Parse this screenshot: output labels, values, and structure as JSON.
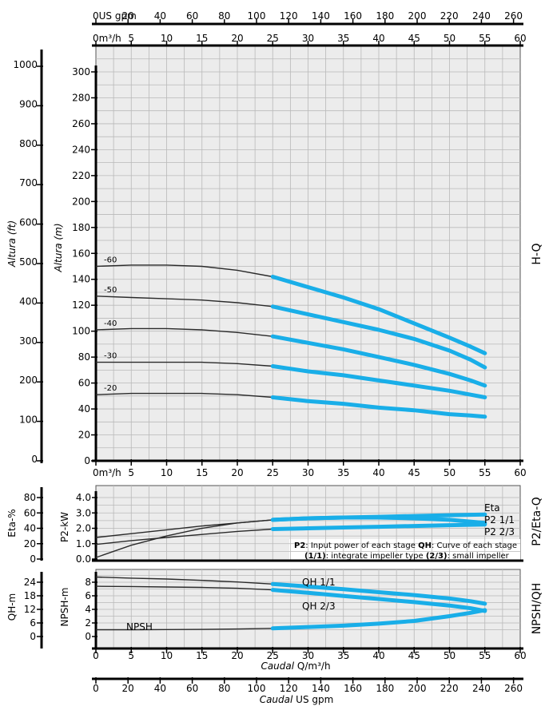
{
  "colors": {
    "blue": "#19aee8",
    "black": "#2a2a2a",
    "panel": "#ececec",
    "grid": "#b9b9b9"
  },
  "top_axis_usgpm": {
    "unit": "US gpm",
    "ticks": [
      "0",
      "20",
      "40",
      "60",
      "80",
      "100",
      "120",
      "140",
      "160",
      "180",
      "200",
      "220",
      "240",
      "260"
    ]
  },
  "top_axis_m3h": {
    "unit": "m³/h",
    "ticks": [
      "0",
      "5",
      "10",
      "15",
      "20",
      "25",
      "30",
      "35",
      "40",
      "45",
      "50",
      "55",
      "60"
    ]
  },
  "mid_axis_m3h": {
    "unit": "m³/h",
    "ticks": [
      "0",
      "5",
      "10",
      "15",
      "20",
      "25",
      "30",
      "35",
      "40",
      "45",
      "50",
      "55",
      "60"
    ]
  },
  "bottom_axis_m3h": {
    "ticks": [
      "0",
      "5",
      "10",
      "15",
      "20",
      "25",
      "30",
      "35",
      "40",
      "45",
      "50",
      "55",
      "60"
    ],
    "label_italic": "Caudal",
    "label_rest": " Q/m³/h"
  },
  "bottom_axis_usgpm": {
    "ticks": [
      "0",
      "20",
      "40",
      "60",
      "80",
      "100",
      "120",
      "140",
      "160",
      "180",
      "200",
      "220",
      "240",
      "260"
    ],
    "label_italic": "Caudal",
    "label_rest": " US gpm"
  },
  "hq": {
    "side_label": "H-Q",
    "ylabel_m": "Altura (m)",
    "ylabel_ft": "Altura (ft)",
    "ticks_m": [
      "0",
      "20",
      "40",
      "60",
      "80",
      "100",
      "120",
      "140",
      "160",
      "180",
      "200",
      "220",
      "240",
      "260",
      "280",
      "300"
    ],
    "ticks_ft": [
      "0",
      "100",
      "200",
      "300",
      "400",
      "500",
      "600",
      "700",
      "800",
      "900",
      "1000"
    ],
    "curve_labels": [
      "-60",
      "-50",
      "-40",
      "-30",
      "-20"
    ]
  },
  "p2eta": {
    "side_label": "P2/Eta-Q",
    "ylabel_left": "Eta-%",
    "ylabel_right": "P2-kW",
    "ticks_eta": [
      "0",
      "20",
      "40",
      "60",
      "80"
    ],
    "ticks_p2": [
      "0.0",
      "1.0",
      "2.0",
      "3.0",
      "4.0"
    ],
    "curve_labels": [
      "Eta",
      "P2 1/1",
      "P2 2/3"
    ],
    "note_line1_b1": "P2",
    "note_line1_t1": ": Input power of each stage ",
    "note_line1_b2": "QH",
    "note_line1_t2": ": Curve of each stage",
    "note_line2_b1": "(1/1)",
    "note_line2_t1": ": integrate impeller type ",
    "note_line2_b2": "(2/3)",
    "note_line2_t2": ": small impeller"
  },
  "npsh": {
    "side_label": "NPSH/QH",
    "ylabel_left": "QH-m",
    "ylabel_right": "NPSH-m",
    "ticks_qh": [
      "0",
      "6",
      "12",
      "18",
      "24"
    ],
    "ticks_npsh": [
      "0",
      "2",
      "4",
      "6",
      "8"
    ],
    "curve_labels": [
      "QH 1/1",
      "QH 2/3",
      "NPSH"
    ]
  },
  "chart_data": [
    {
      "type": "line",
      "xlabel": "Q (m³/h)",
      "ylabel": "Altura (m)",
      "xlim": [
        0,
        60
      ],
      "ylim": [
        0,
        320
      ],
      "series": [
        {
          "name": "-60",
          "x": [
            0,
            5,
            10,
            15,
            20,
            25,
            30,
            35,
            40,
            45,
            50,
            53,
            55
          ],
          "y": [
            150,
            151,
            151,
            150,
            147,
            142,
            134,
            126,
            117,
            106,
            95,
            88,
            83
          ]
        },
        {
          "name": "-50",
          "x": [
            0,
            5,
            10,
            15,
            20,
            25,
            30,
            35,
            40,
            45,
            50,
            53,
            55
          ],
          "y": [
            127,
            126,
            125,
            124,
            122,
            119,
            113,
            107,
            101,
            94,
            85,
            78,
            72
          ]
        },
        {
          "name": "-40",
          "x": [
            0,
            5,
            10,
            15,
            20,
            25,
            30,
            35,
            40,
            45,
            50,
            53,
            55
          ],
          "y": [
            101,
            102,
            102,
            101,
            99,
            96,
            91,
            86,
            80,
            74,
            67,
            62,
            58
          ]
        },
        {
          "name": "-30",
          "x": [
            0,
            5,
            10,
            15,
            20,
            25,
            30,
            35,
            40,
            45,
            50,
            53,
            55
          ],
          "y": [
            76,
            76,
            76,
            76,
            75,
            73,
            69,
            66,
            62,
            58,
            54,
            51,
            49
          ]
        },
        {
          "name": "-20",
          "x": [
            0,
            5,
            10,
            15,
            20,
            25,
            30,
            35,
            40,
            45,
            50,
            53,
            55
          ],
          "y": [
            51,
            52,
            52,
            52,
            51,
            49,
            46,
            44,
            41,
            39,
            36,
            35,
            34
          ]
        }
      ]
    },
    {
      "type": "line",
      "xlabel": "Q (m³/h)",
      "ylabel": "P2-kW",
      "xlim": [
        0,
        60
      ],
      "ylim": [
        0,
        4.5
      ],
      "series": [
        {
          "name": "Eta",
          "x": [
            0,
            5,
            10,
            15,
            20,
            25,
            30,
            35,
            40,
            45,
            50,
            55
          ],
          "y": [
            2,
            18,
            30,
            40,
            47,
            51,
            53,
            54,
            54,
            53,
            51,
            47
          ]
        },
        {
          "name": "P2 1/1",
          "x": [
            0,
            5,
            10,
            15,
            20,
            25,
            30,
            35,
            40,
            45,
            50,
            55
          ],
          "y": [
            1.4,
            1.65,
            1.9,
            2.15,
            2.35,
            2.55,
            2.65,
            2.7,
            2.75,
            2.8,
            2.85,
            2.9
          ]
        },
        {
          "name": "P2 2/3",
          "x": [
            0,
            5,
            10,
            15,
            20,
            25,
            30,
            35,
            40,
            45,
            50,
            55
          ],
          "y": [
            0.95,
            1.2,
            1.4,
            1.6,
            1.8,
            1.95,
            2.0,
            2.05,
            2.1,
            2.15,
            2.2,
            2.25
          ]
        }
      ]
    },
    {
      "type": "line",
      "xlabel": "Caudal Q/m³/h",
      "ylabel": "NPSH-m",
      "xlim": [
        0,
        60
      ],
      "ylim": [
        0,
        10
      ],
      "series": [
        {
          "name": "QH 1/1",
          "x": [
            0,
            5,
            10,
            15,
            20,
            25,
            30,
            35,
            40,
            45,
            50,
            53,
            55
          ],
          "y": [
            26.3,
            25.8,
            25.4,
            24.8,
            24.1,
            23.2,
            22.1,
            20.9,
            19.6,
            18.3,
            16.8,
            15.6,
            14.5
          ]
        },
        {
          "name": "QH 2/3",
          "x": [
            0,
            5,
            10,
            15,
            20,
            25,
            30,
            35,
            40,
            45,
            50,
            53,
            55
          ],
          "y": [
            22.2,
            22.1,
            21.9,
            21.7,
            21.3,
            20.6,
            19.3,
            17.9,
            16.6,
            15.2,
            13.7,
            12.5,
            11.3
          ]
        },
        {
          "name": "NPSH",
          "x": [
            0,
            5,
            10,
            15,
            20,
            25,
            30,
            35,
            40,
            45,
            50,
            53,
            55
          ],
          "y": [
            1.0,
            1.0,
            1.02,
            1.05,
            1.1,
            1.2,
            1.4,
            1.6,
            1.9,
            2.3,
            3.0,
            3.5,
            3.9
          ]
        }
      ]
    }
  ]
}
